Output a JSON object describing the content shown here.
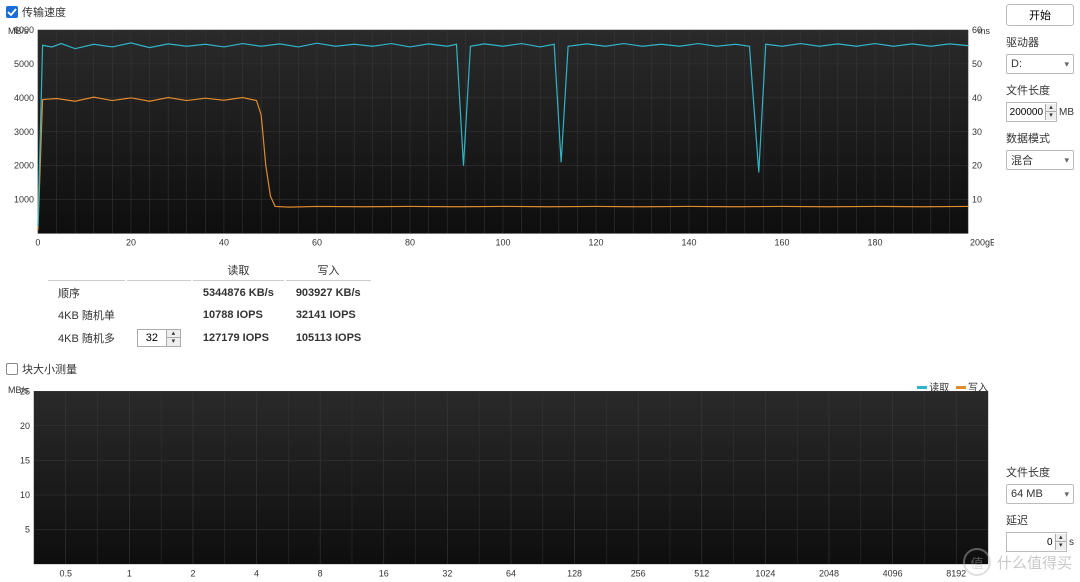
{
  "panel1": {
    "checkbox_label": "传输速度",
    "checkbox_checked": true,
    "chart": {
      "bg_top": "#2a2a2a",
      "bg_bottom": "#0e0e0e",
      "grid_color": "#3a3a3a",
      "axis_color": "#555",
      "text_color": "#333",
      "y1_label": "MB/s",
      "y1_max": 6000,
      "y1_ticks": [
        1000,
        2000,
        3000,
        4000,
        5000,
        6000
      ],
      "y2_label": "ms",
      "y2_max": 60,
      "y2_ticks": [
        10,
        20,
        30,
        40,
        50,
        60
      ],
      "x_max": 200,
      "x_unit": "gB",
      "x_ticks": [
        0,
        20,
        40,
        60,
        80,
        100,
        120,
        140,
        160,
        180
      ],
      "read_color": "#2fb5c7",
      "write_color": "#e08a2c",
      "read_series": [
        [
          0,
          200
        ],
        [
          1,
          5550
        ],
        [
          3,
          5500
        ],
        [
          5,
          5600
        ],
        [
          8,
          5450
        ],
        [
          12,
          5580
        ],
        [
          16,
          5500
        ],
        [
          20,
          5620
        ],
        [
          24,
          5480
        ],
        [
          28,
          5590
        ],
        [
          32,
          5520
        ],
        [
          36,
          5580
        ],
        [
          40,
          5500
        ],
        [
          44,
          5600
        ],
        [
          48,
          5520
        ],
        [
          52,
          5590
        ],
        [
          56,
          5500
        ],
        [
          60,
          5610
        ],
        [
          64,
          5520
        ],
        [
          68,
          5580
        ],
        [
          72,
          5520
        ],
        [
          76,
          5600
        ],
        [
          80,
          5500
        ],
        [
          84,
          5590
        ],
        [
          88,
          5520
        ],
        [
          90,
          5580
        ],
        [
          91.5,
          2000
        ],
        [
          93,
          5520
        ],
        [
          96,
          5590
        ],
        [
          100,
          5520
        ],
        [
          104,
          5600
        ],
        [
          108,
          5500
        ],
        [
          111,
          5580
        ],
        [
          112.5,
          2100
        ],
        [
          114,
          5520
        ],
        [
          118,
          5590
        ],
        [
          122,
          5520
        ],
        [
          126,
          5600
        ],
        [
          130,
          5520
        ],
        [
          134,
          5580
        ],
        [
          138,
          5520
        ],
        [
          142,
          5600
        ],
        [
          146,
          5520
        ],
        [
          150,
          5580
        ],
        [
          153,
          5520
        ],
        [
          155,
          1800
        ],
        [
          156.5,
          5580
        ],
        [
          160,
          5520
        ],
        [
          164,
          5600
        ],
        [
          168,
          5520
        ],
        [
          172,
          5590
        ],
        [
          176,
          5520
        ],
        [
          180,
          5600
        ],
        [
          184,
          5520
        ],
        [
          188,
          5590
        ],
        [
          192,
          5520
        ],
        [
          196,
          5590
        ],
        [
          200,
          5540
        ]
      ],
      "write_series": [
        [
          0,
          100
        ],
        [
          1,
          3950
        ],
        [
          4,
          3980
        ],
        [
          8,
          3900
        ],
        [
          12,
          4020
        ],
        [
          16,
          3920
        ],
        [
          20,
          4000
        ],
        [
          24,
          3900
        ],
        [
          28,
          4010
        ],
        [
          32,
          3920
        ],
        [
          36,
          3990
        ],
        [
          40,
          3930
        ],
        [
          44,
          4010
        ],
        [
          47,
          3920
        ],
        [
          48,
          3500
        ],
        [
          49,
          2000
        ],
        [
          50,
          1100
        ],
        [
          51,
          800
        ],
        [
          54,
          780
        ],
        [
          60,
          800
        ],
        [
          70,
          790
        ],
        [
          80,
          800
        ],
        [
          90,
          790
        ],
        [
          100,
          800
        ],
        [
          110,
          790
        ],
        [
          120,
          800
        ],
        [
          130,
          790
        ],
        [
          140,
          800
        ],
        [
          150,
          790
        ],
        [
          160,
          800
        ],
        [
          170,
          790
        ],
        [
          180,
          800
        ],
        [
          190,
          790
        ],
        [
          200,
          800
        ]
      ]
    },
    "results": {
      "col_read": "读取",
      "col_write": "写入",
      "rows": [
        {
          "label": "顺序",
          "read_val": "5344876",
          "read_unit": "KB/s",
          "write_val": "903927",
          "write_unit": "KB/s"
        },
        {
          "label": "4KB 随机单",
          "read_val": "10788",
          "read_unit": "IOPS",
          "write_val": "32141",
          "write_unit": "IOPS"
        },
        {
          "label": "4KB 随机多",
          "read_val": "127179",
          "read_unit": "IOPS",
          "write_val": "105113",
          "write_unit": "IOPS"
        }
      ],
      "qd_value": "32"
    }
  },
  "sidebar1": {
    "start_btn": "开始",
    "drive_label": "驱动器",
    "drive_value": "D:",
    "filelen_label": "文件长度",
    "filelen_value": "200000",
    "filelen_unit": "MB",
    "mode_label": "数据模式",
    "mode_value": "混合"
  },
  "panel2": {
    "checkbox_label": "块大小测量",
    "checkbox_checked": false,
    "chart": {
      "bg_top": "#2a2a2a",
      "bg_bottom": "#0e0e0e",
      "grid_color": "#3a3a3a",
      "y_label": "MB/s",
      "y_max": 25,
      "y_ticks": [
        5,
        10,
        15,
        20,
        25
      ],
      "x_ticks_labels": [
        "0.5",
        "1",
        "2",
        "4",
        "8",
        "16",
        "32",
        "64",
        "128",
        "256",
        "512",
        "1024",
        "2048",
        "4096",
        "8192"
      ],
      "read_color": "#2fb5c7",
      "write_color": "#e08a2c",
      "legend_read": "读取",
      "legend_write": "写入"
    }
  },
  "sidebar2": {
    "filelen_label": "文件长度",
    "filelen_value": "64 MB",
    "delay_label": "延迟",
    "delay_value": "0",
    "delay_unit": "s"
  },
  "watermark": "什么值得买"
}
